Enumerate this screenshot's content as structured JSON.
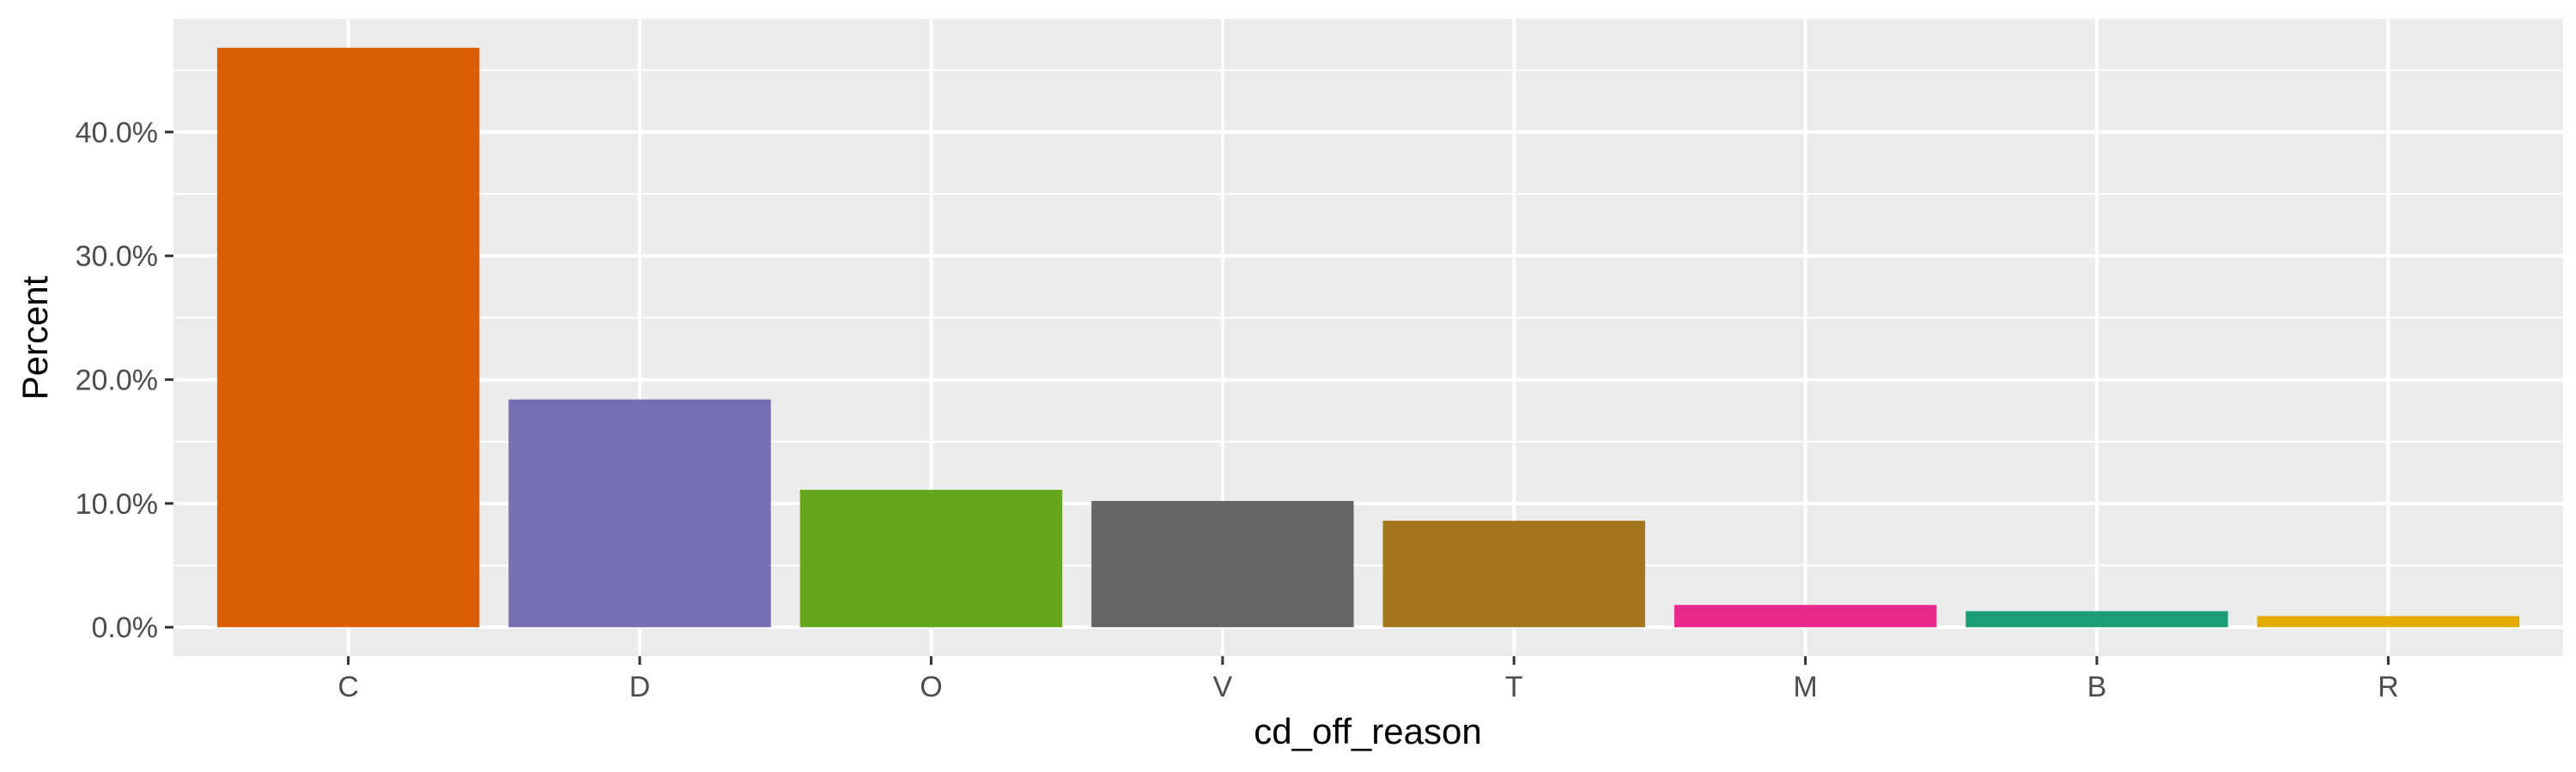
{
  "chart_data": {
    "type": "bar",
    "title": "",
    "xlabel": "cd_off_reason",
    "ylabel": "Percent",
    "categories": [
      "C",
      "D",
      "O",
      "V",
      "T",
      "M",
      "B",
      "R"
    ],
    "values": [
      46.8,
      18.4,
      11.1,
      10.2,
      8.6,
      1.8,
      1.3,
      0.9
    ],
    "colors": [
      "#D95F02",
      "#7570B3",
      "#66A61E",
      "#666666",
      "#A6761D",
      "#E7298A",
      "#1B9E77",
      "#E6AB02"
    ],
    "yticks": [
      0,
      10,
      20,
      30,
      40
    ],
    "ytick_labels": [
      "0.0%",
      "10.0%",
      "20.0%",
      "30.0%",
      "40.0%"
    ],
    "ylim": [
      -2.34,
      49.14
    ],
    "grid": true,
    "legend": "none",
    "panel_background": "#EBEBEB",
    "grid_color": "#FFFFFF"
  }
}
